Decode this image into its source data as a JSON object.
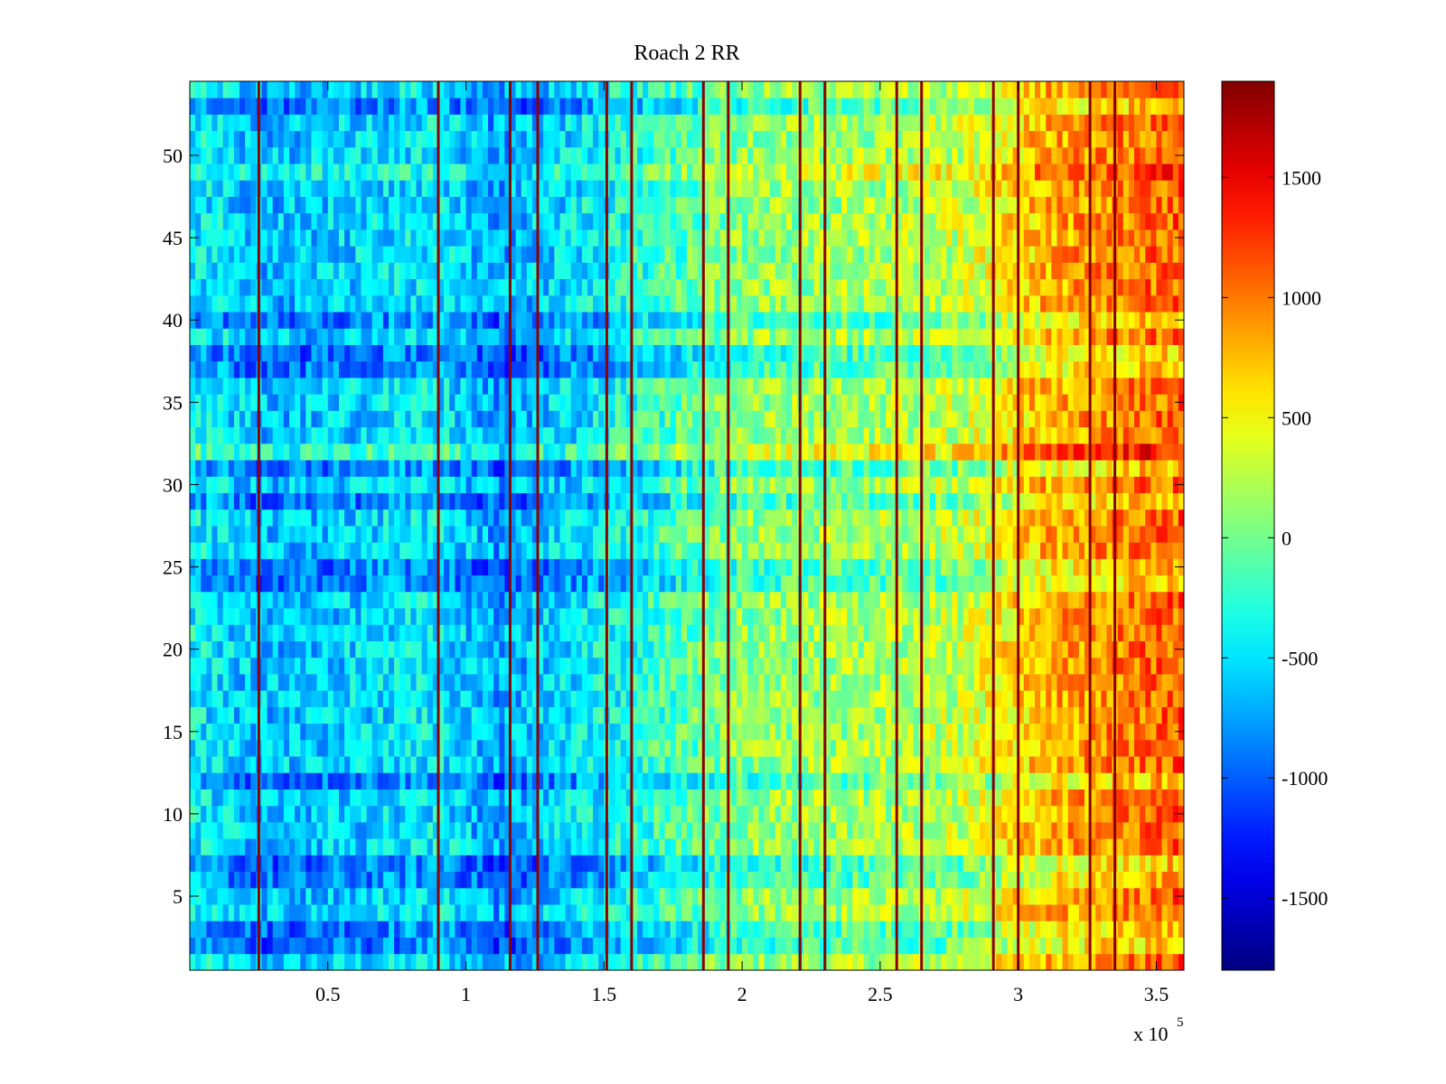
{
  "chart_data": {
    "type": "heatmap",
    "title": "Roach 2 RR",
    "xlabel": "",
    "ylabel": "",
    "colormap": "jet",
    "xlim": [
      0,
      360000
    ],
    "ylim": [
      0.5,
      54.5
    ],
    "x_ticks": [
      50000,
      100000,
      150000,
      200000,
      250000,
      300000,
      350000
    ],
    "x_tick_labels": [
      "0.5",
      "1",
      "1.5",
      "2",
      "2.5",
      "3",
      "3.5"
    ],
    "x_exponent_label": "x 10",
    "x_exponent": "5",
    "y_ticks": [
      5,
      10,
      15,
      20,
      25,
      30,
      35,
      40,
      45,
      50
    ],
    "y_tick_labels": [
      "5",
      "10",
      "15",
      "20",
      "25",
      "30",
      "35",
      "40",
      "45",
      "50"
    ],
    "rows": 54,
    "clim": [
      -1800,
      1900
    ],
    "colorbar_ticks": [
      -1500,
      -1000,
      -500,
      0,
      500,
      1000,
      1500
    ],
    "colorbar_tick_labels": [
      "-1500",
      "-1000",
      "-500",
      "0",
      "500",
      "1000",
      "1500"
    ],
    "column_trend": {
      "x": [
        0,
        25000,
        50000,
        90000,
        110000,
        150000,
        170000,
        200000,
        250000,
        280000,
        310000,
        340000,
        360000
      ],
      "value": [
        -400,
        -650,
        -600,
        -450,
        -750,
        -400,
        -200,
        100,
        200,
        300,
        800,
        1000,
        1100
      ]
    },
    "vertical_streaks": {
      "x": [
        25000,
        90000,
        116000,
        126000,
        151000,
        160000,
        186000,
        195000,
        221000,
        230000,
        256000,
        265000,
        291000,
        300000,
        326000,
        335000
      ],
      "value": [
        1850,
        1850,
        1850,
        1850,
        1850,
        1850,
        1850,
        1850,
        1850,
        1850,
        1850,
        1850,
        1850,
        1850,
        1850,
        1850
      ]
    },
    "row_offsets": [
      {
        "y": 2,
        "value": -350
      },
      {
        "y": 3,
        "value": -300
      },
      {
        "y": 6,
        "value": -300
      },
      {
        "y": 7,
        "value": -350
      },
      {
        "y": 12,
        "value": -300
      },
      {
        "y": 24,
        "value": -300
      },
      {
        "y": 25,
        "value": -300
      },
      {
        "y": 29,
        "value": -300
      },
      {
        "y": 31,
        "value": -300
      },
      {
        "y": 32,
        "value": 300
      },
      {
        "y": 37,
        "value": -300
      },
      {
        "y": 38,
        "value": -350
      },
      {
        "y": 40,
        "value": -300
      },
      {
        "y": 49,
        "value": 200
      },
      {
        "y": 53,
        "value": -300
      }
    ]
  }
}
